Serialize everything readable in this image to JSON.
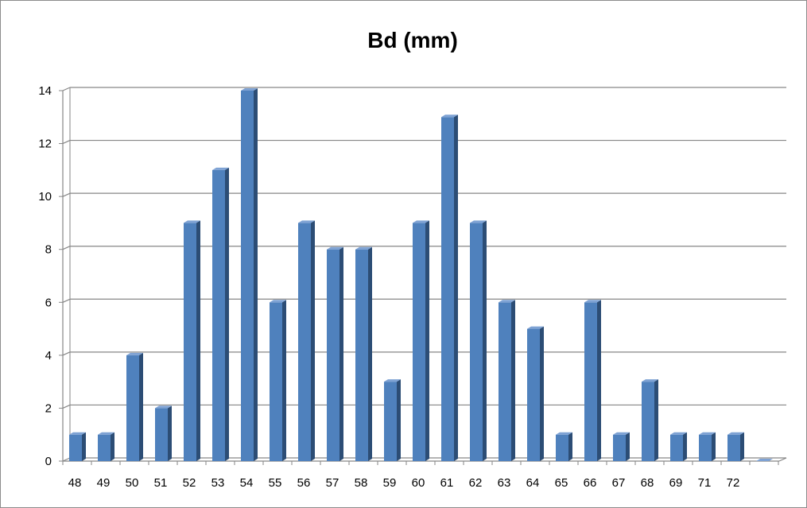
{
  "chart_data": {
    "type": "bar",
    "title": "Bd (mm)",
    "xlabel": "",
    "ylabel": "",
    "categories": [
      "48",
      "49",
      "50",
      "51",
      "52",
      "53",
      "54",
      "55",
      "56",
      "57",
      "58",
      "59",
      "60",
      "61",
      "62",
      "63",
      "64",
      "65",
      "66",
      "67",
      "68",
      "69",
      "71",
      "72",
      ""
    ],
    "values": [
      1,
      1,
      4,
      2,
      9,
      11,
      14,
      6,
      9,
      8,
      8,
      3,
      9,
      13,
      9,
      6,
      5,
      1,
      6,
      1,
      3,
      1,
      1,
      1,
      0
    ],
    "ylim": [
      0,
      14
    ],
    "yticks": [
      0,
      2,
      4,
      6,
      8,
      10,
      12,
      14
    ],
    "grid": true,
    "legend": "none",
    "colors": {
      "bar_front": "#4f81bd",
      "bar_side": "#2c4d75",
      "bar_top": "#7ea2d4",
      "gridline": "#868686",
      "axis": "#868686"
    }
  }
}
